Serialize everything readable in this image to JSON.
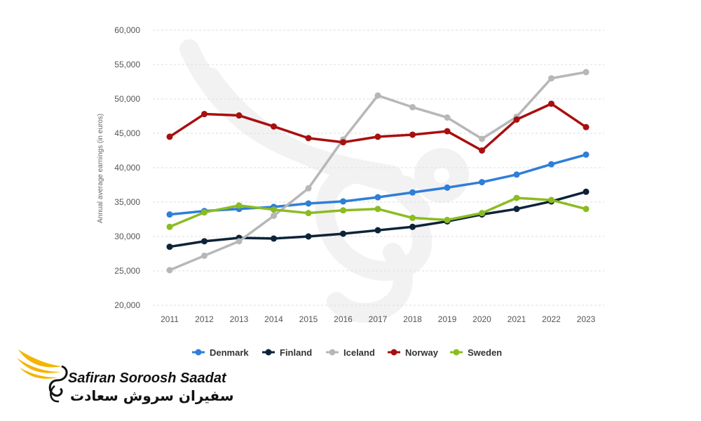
{
  "chart_data": {
    "type": "line",
    "ylabel": "Annual average earnings (in euros)",
    "xlabel": "",
    "categories": [
      "2011",
      "2012",
      "2013",
      "2014",
      "2015",
      "2016",
      "2017",
      "2018",
      "2019",
      "2020",
      "2021",
      "2022",
      "2023"
    ],
    "ylim": [
      20000,
      60000
    ],
    "yticks": [
      20000,
      25000,
      30000,
      35000,
      40000,
      45000,
      50000,
      55000,
      60000
    ],
    "ytick_labels": [
      "20,000",
      "25,000",
      "30,000",
      "35,000",
      "40,000",
      "45,000",
      "50,000",
      "55,000",
      "60,000"
    ],
    "grid": true,
    "legend_position": "bottom",
    "series": [
      {
        "name": "Denmark",
        "color": "#2f7ed8",
        "values": [
          33200,
          33700,
          34000,
          34300,
          34800,
          35100,
          35700,
          36400,
          37100,
          37900,
          39000,
          40500,
          41900
        ]
      },
      {
        "name": "Finland",
        "color": "#0d233a",
        "values": [
          28500,
          29300,
          29800,
          29700,
          30000,
          30400,
          30900,
          31400,
          32200,
          33200,
          34000,
          35100,
          36500
        ]
      },
      {
        "name": "Iceland",
        "color": "#b7b7b7",
        "values": [
          25100,
          27200,
          29300,
          33000,
          37000,
          44100,
          50500,
          48800,
          47300,
          44200,
          47400,
          53000,
          53900
        ]
      },
      {
        "name": "Norway",
        "color": "#a80f0f",
        "values": [
          44500,
          47800,
          47600,
          46000,
          44300,
          43700,
          44500,
          44800,
          45300,
          42500,
          47000,
          49300,
          45900
        ]
      },
      {
        "name": "Sweden",
        "color": "#8bbc21",
        "values": [
          31400,
          33500,
          34500,
          33900,
          33400,
          33800,
          34000,
          32700,
          32400,
          33400,
          35600,
          35300,
          34000
        ]
      }
    ]
  },
  "branding": {
    "name_en": "Safiran Soroosh Saadat",
    "name_fa": "سفیران سروش سعادت"
  }
}
